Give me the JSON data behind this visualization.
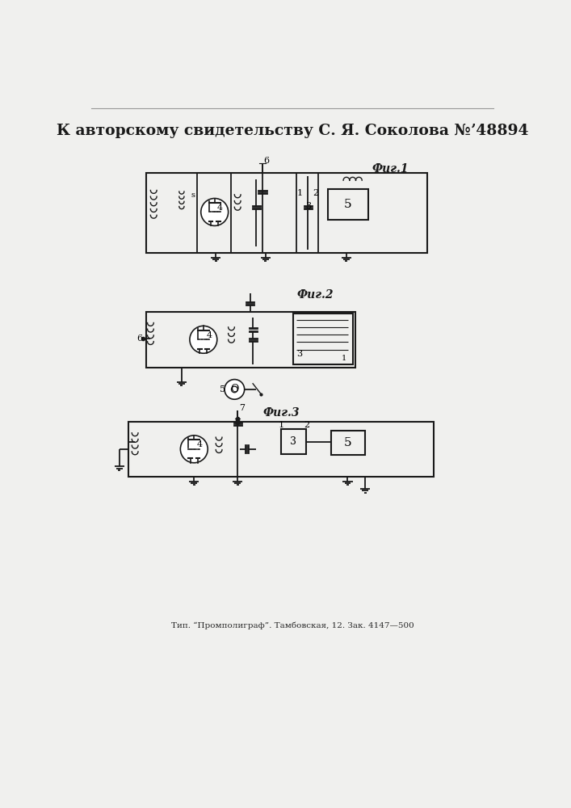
{
  "title": "К авторскому свидетельству С. Я. Соколова №ʼ48894",
  "fig1_label": "Фиг.1",
  "fig2_label": "Фиг.2",
  "fig3_label": "Фиг.3",
  "footer": "Тип. “Промполиграф”. Тамбовская, 12. Зак. 4147—500",
  "bg_color": "#e8e8e8",
  "line_color": "#1a1a1a",
  "page_color": "#f0f0ee"
}
